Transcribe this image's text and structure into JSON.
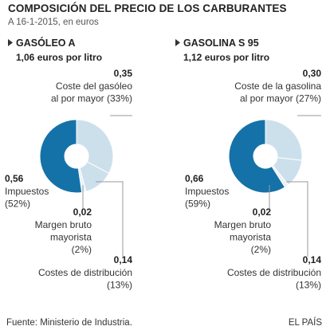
{
  "header": {
    "title": "COMPOSICIÓN DEL PRECIO DE LOS CARBURANTES",
    "subtitle": "A 16-1-2015, en euros"
  },
  "colors": {
    "impuestos": "#1572a8",
    "coste_mayor": "#cce0ec",
    "costes_distribucion": "#cce0ec",
    "margen": "#eaf2f7",
    "separator": "#ffffff",
    "leader": "#999999"
  },
  "chart_data": [
    {
      "type": "pie",
      "name": "GASÓLEO A",
      "total_label": "1,06 euros por litro",
      "slices": [
        {
          "key": "coste_mayor",
          "value": 0.35,
          "value_label": "0,35",
          "label_lines": [
            "Coste del gasóleo",
            "al por mayor (33%)"
          ]
        },
        {
          "key": "costes_distribucion",
          "value": 0.14,
          "value_label": "0,14",
          "label_lines": [
            "Costes de distribución",
            "(13%)"
          ]
        },
        {
          "key": "margen",
          "value": 0.02,
          "value_label": "0,02",
          "label_lines": [
            "Margen bruto",
            "mayorista",
            "(2%)"
          ]
        },
        {
          "key": "impuestos",
          "value": 0.56,
          "value_label": "0,56",
          "label_lines": [
            "Impuestos",
            "(52%)"
          ]
        }
      ]
    },
    {
      "type": "pie",
      "name": "GASOLINA S 95",
      "total_label": "1,12 euros por litro",
      "slices": [
        {
          "key": "coste_mayor",
          "value": 0.3,
          "value_label": "0,30",
          "label_lines": [
            "Coste de la gasolina",
            "al por mayor (27%)"
          ]
        },
        {
          "key": "costes_distribucion",
          "value": 0.14,
          "value_label": "0,14",
          "label_lines": [
            "Costes de distribución",
            "(13%)"
          ]
        },
        {
          "key": "margen",
          "value": 0.02,
          "value_label": "0,02",
          "label_lines": [
            "Margen bruto",
            "mayorista",
            "(2%)"
          ]
        },
        {
          "key": "impuestos",
          "value": 0.66,
          "value_label": "0,66",
          "label_lines": [
            "Impuestos",
            "(59%)"
          ]
        }
      ]
    }
  ],
  "footer": {
    "source": "Fuente: Ministerio de Industria.",
    "brand": "EL PAÍS"
  }
}
